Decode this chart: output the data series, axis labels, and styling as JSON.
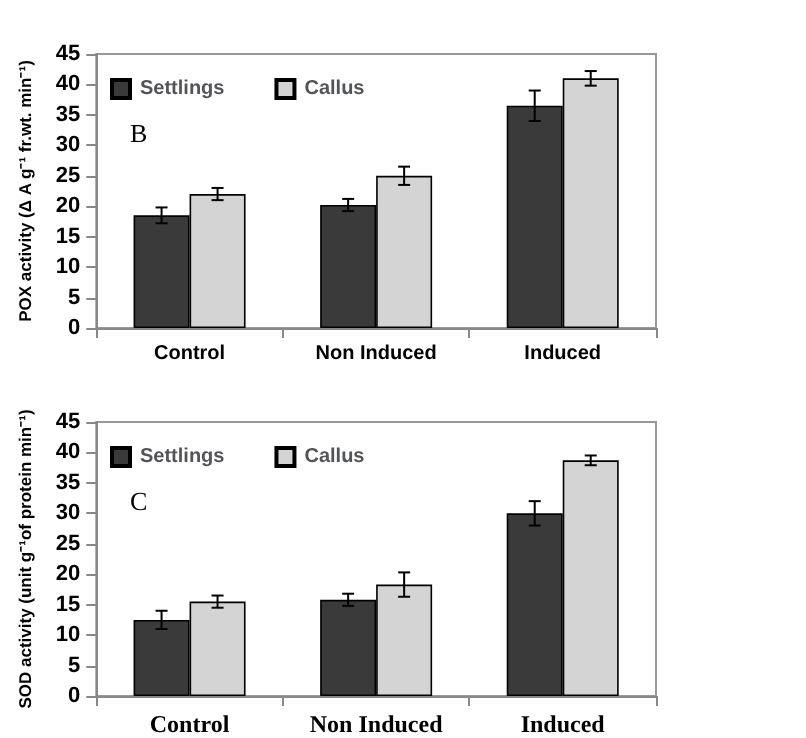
{
  "chart_data": [
    {
      "type": "bar",
      "ylabel": "POX activity (Δ A g⁻¹ fr.wt. min⁻¹)",
      "categories": [
        "Control",
        "Non Induced",
        "Induced"
      ],
      "series": [
        {
          "name": "Settlings",
          "color": "#3a3a3a",
          "values": [
            18.5,
            20.2,
            36.5
          ],
          "errors": [
            1.3,
            1,
            2.5
          ]
        },
        {
          "name": "Callus",
          "color": "#d4d4d4",
          "values": [
            22,
            25,
            41
          ],
          "errors": [
            1,
            1.5,
            1.2
          ]
        }
      ],
      "ylim": [
        0,
        45
      ],
      "yticks": [
        0,
        5,
        10,
        15,
        20,
        25,
        30,
        35,
        40,
        45
      ],
      "grid": false,
      "legend": "top left",
      "annotations": [
        "B"
      ]
    },
    {
      "type": "bar",
      "ylabel": "SOD activity (unit g⁻¹of protein min⁻¹)",
      "categories": [
        "Control",
        "Non Induced",
        "Induced"
      ],
      "series": [
        {
          "name": "Settlings",
          "color": "#3a3a3a",
          "values": [
            12.5,
            15.8,
            30
          ],
          "errors": [
            1.5,
            1,
            2
          ]
        },
        {
          "name": "Callus",
          "color": "#d4d4d4",
          "values": [
            15.5,
            18.3,
            38.7
          ],
          "errors": [
            1,
            2,
            0.8
          ]
        }
      ],
      "ylim": [
        0,
        45
      ],
      "yticks": [
        0,
        5,
        10,
        15,
        20,
        25,
        30,
        35,
        40,
        45
      ],
      "grid": false,
      "legend": "top left",
      "annotations": [
        "C"
      ]
    }
  ]
}
